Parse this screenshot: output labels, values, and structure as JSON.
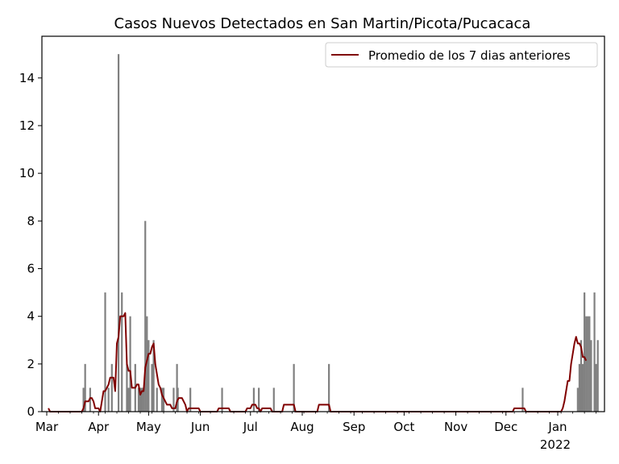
{
  "chart_data": {
    "type": "bar",
    "title": "Casos Nuevos Detectados en San Martin/Picota/Pucacaca",
    "xlabel": "",
    "ylabel": "",
    "ylim": [
      0,
      15.75
    ],
    "yticks": [
      0,
      2,
      4,
      6,
      8,
      10,
      12,
      14
    ],
    "xticks": [
      {
        "label": "Mar",
        "day": 0
      },
      {
        "label": "Apr",
        "day": 31
      },
      {
        "label": "May",
        "day": 61
      },
      {
        "label": "Jun",
        "day": 92
      },
      {
        "label": "Jul",
        "day": 122
      },
      {
        "label": "Aug",
        "day": 153
      },
      {
        "label": "Sep",
        "day": 184
      },
      {
        "label": "Oct",
        "day": 214
      },
      {
        "label": "Nov",
        "day": 245
      },
      {
        "label": "Dec",
        "day": 275
      },
      {
        "label": "Jan",
        "day": 306,
        "sublabel": "2022"
      }
    ],
    "x_range": [
      0,
      334
    ],
    "grid": false,
    "legend_position": "top-right",
    "bar_color": "#808080",
    "line_color": "#800000",
    "bars": [
      {
        "day": 22,
        "value": 1
      },
      {
        "day": 23,
        "value": 2
      },
      {
        "day": 26,
        "value": 1
      },
      {
        "day": 35,
        "value": 5
      },
      {
        "day": 37,
        "value": 1
      },
      {
        "day": 39,
        "value": 2
      },
      {
        "day": 43,
        "value": 15
      },
      {
        "day": 45,
        "value": 5
      },
      {
        "day": 48,
        "value": 2
      },
      {
        "day": 49,
        "value": 1
      },
      {
        "day": 50,
        "value": 4
      },
      {
        "day": 53,
        "value": 2
      },
      {
        "day": 55,
        "value": 1
      },
      {
        "day": 56,
        "value": 1
      },
      {
        "day": 57,
        "value": 1
      },
      {
        "day": 58,
        "value": 1
      },
      {
        "day": 59,
        "value": 8
      },
      {
        "day": 60,
        "value": 4
      },
      {
        "day": 61,
        "value": 3
      },
      {
        "day": 63,
        "value": 2
      },
      {
        "day": 64,
        "value": 3
      },
      {
        "day": 66,
        "value": 1
      },
      {
        "day": 69,
        "value": 1
      },
      {
        "day": 70,
        "value": 1
      },
      {
        "day": 76,
        "value": 1
      },
      {
        "day": 78,
        "value": 2
      },
      {
        "day": 78.5,
        "value": 1
      },
      {
        "day": 86,
        "value": 1
      },
      {
        "day": 105,
        "value": 1
      },
      {
        "day": 124,
        "value": 1
      },
      {
        "day": 127,
        "value": 1
      },
      {
        "day": 136,
        "value": 1
      },
      {
        "day": 148,
        "value": 2
      },
      {
        "day": 169,
        "value": 2
      },
      {
        "day": 285,
        "value": 1
      },
      {
        "day": 318,
        "value": 1
      },
      {
        "day": 319,
        "value": 2
      },
      {
        "day": 320,
        "value": 3
      },
      {
        "day": 321,
        "value": 2
      },
      {
        "day": 322,
        "value": 5
      },
      {
        "day": 323,
        "value": 4
      },
      {
        "day": 324,
        "value": 4
      },
      {
        "day": 325,
        "value": 4
      },
      {
        "day": 326,
        "value": 3
      },
      {
        "day": 328,
        "value": 5
      },
      {
        "day": 329,
        "value": 2
      },
      {
        "day": 330,
        "value": 3
      }
    ],
    "series": [
      {
        "name": "Promedio de los 7 dias anteriores",
        "points": [
          [
            1,
            0.14
          ],
          [
            2,
            0
          ],
          [
            21,
            0
          ],
          [
            22,
            0.14
          ],
          [
            23,
            0.43
          ],
          [
            25,
            0.43
          ],
          [
            26,
            0.57
          ],
          [
            27,
            0.57
          ],
          [
            28,
            0.43
          ],
          [
            29,
            0.14
          ],
          [
            31,
            0.14
          ],
          [
            32,
            0
          ],
          [
            34,
            0.86
          ],
          [
            35,
            0.86
          ],
          [
            36,
            1.0
          ],
          [
            37,
            1.14
          ],
          [
            38,
            1.43
          ],
          [
            40,
            1.43
          ],
          [
            41,
            0.86
          ],
          [
            42,
            2.86
          ],
          [
            43,
            3.14
          ],
          [
            44,
            4.0
          ],
          [
            46,
            4.0
          ],
          [
            47,
            4.14
          ],
          [
            48,
            2.0
          ],
          [
            49,
            1.71
          ],
          [
            50,
            1.71
          ],
          [
            51,
            1.0
          ],
          [
            53,
            1.0
          ],
          [
            54,
            1.14
          ],
          [
            55,
            1.14
          ],
          [
            56,
            0.71
          ],
          [
            57,
            0.86
          ],
          [
            58,
            0.86
          ],
          [
            59,
            1.86
          ],
          [
            60,
            2.14
          ],
          [
            61,
            2.43
          ],
          [
            62,
            2.43
          ],
          [
            63,
            2.71
          ],
          [
            64,
            2.86
          ],
          [
            65,
            2.0
          ],
          [
            66,
            1.57
          ],
          [
            67,
            1.14
          ],
          [
            68,
            1.0
          ],
          [
            69,
            0.71
          ],
          [
            70,
            0.57
          ],
          [
            71,
            0.43
          ],
          [
            72,
            0.29
          ],
          [
            74,
            0.29
          ],
          [
            75,
            0.14
          ],
          [
            77,
            0.14
          ],
          [
            78,
            0.43
          ],
          [
            79,
            0.57
          ],
          [
            81,
            0.57
          ],
          [
            82,
            0.43
          ],
          [
            83,
            0.29
          ],
          [
            84,
            0
          ],
          [
            85,
            0.14
          ],
          [
            91,
            0.14
          ],
          [
            92,
            0
          ],
          [
            102,
            0
          ],
          [
            103,
            0.14
          ],
          [
            109,
            0.14
          ],
          [
            110,
            0
          ],
          [
            119,
            0
          ],
          [
            120,
            0.14
          ],
          [
            122,
            0.14
          ],
          [
            123,
            0.29
          ],
          [
            125,
            0.29
          ],
          [
            126,
            0.14
          ],
          [
            127,
            0.14
          ],
          [
            128,
            0
          ],
          [
            129,
            0.14
          ],
          [
            134,
            0.14
          ],
          [
            135,
            0
          ],
          [
            141,
            0
          ],
          [
            142,
            0.29
          ],
          [
            148,
            0.29
          ],
          [
            149,
            0
          ],
          [
            162,
            0
          ],
          [
            163,
            0.29
          ],
          [
            169,
            0.29
          ],
          [
            170,
            0
          ],
          [
            279,
            0
          ],
          [
            280,
            0.14
          ],
          [
            286,
            0.14
          ],
          [
            287,
            0
          ],
          [
            308,
            0
          ],
          [
            309,
            0.14
          ],
          [
            310,
            0.43
          ],
          [
            311,
            0.86
          ],
          [
            312,
            1.29
          ],
          [
            313,
            1.29
          ],
          [
            314,
            2.0
          ],
          [
            315,
            2.43
          ],
          [
            316,
            2.86
          ],
          [
            317,
            3.14
          ],
          [
            318,
            2.86
          ],
          [
            319,
            2.86
          ],
          [
            320,
            2.71
          ],
          [
            321,
            2.29
          ],
          [
            322,
            2.29
          ],
          [
            323,
            2.14
          ]
        ]
      }
    ]
  }
}
